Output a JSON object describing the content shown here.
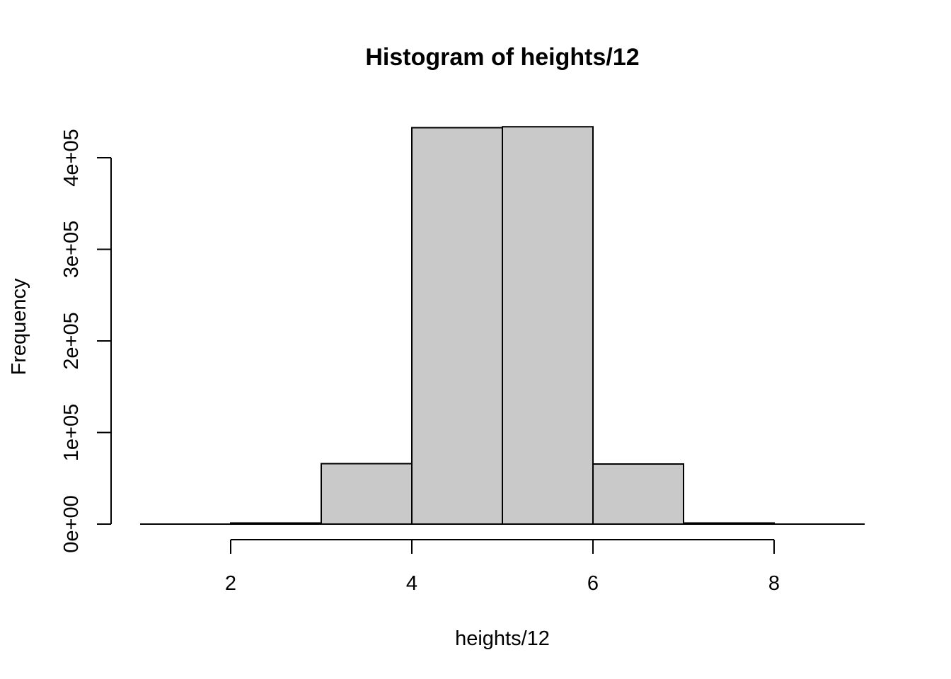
{
  "chart_data": {
    "type": "bar",
    "title": "Histogram of heights/12",
    "xlabel": "heights/12",
    "ylabel": "Frequency",
    "bins": [
      {
        "start": 2,
        "end": 3,
        "count": 1200
      },
      {
        "start": 3,
        "end": 4,
        "count": 66000
      },
      {
        "start": 4,
        "end": 5,
        "count": 432800
      },
      {
        "start": 5,
        "end": 6,
        "count": 433800
      },
      {
        "start": 6,
        "end": 7,
        "count": 65600
      },
      {
        "start": 7,
        "end": 8,
        "count": 1200
      }
    ],
    "xlim": [
      1,
      9
    ],
    "ylim": [
      0,
      440000
    ],
    "x_ticks": [
      2,
      4,
      6,
      8
    ],
    "x_tick_labels": [
      "2",
      "4",
      "6",
      "8"
    ],
    "y_ticks": [
      0,
      100000,
      200000,
      300000,
      400000
    ],
    "y_tick_labels": [
      "0e+00",
      "1e+05",
      "2e+05",
      "3e+05",
      "4e+05"
    ],
    "grid": false,
    "legend": "none",
    "colors": {
      "bar_fill": "#c9c9c9",
      "bar_stroke": "#000000"
    }
  }
}
